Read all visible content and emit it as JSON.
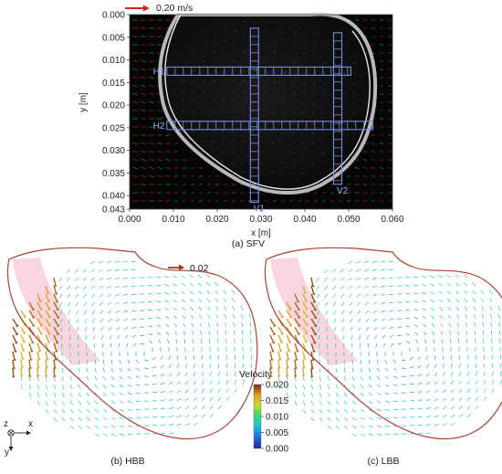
{
  "panel_a": {
    "caption": "(a) SFV",
    "chart_data": {
      "type": "vector_field",
      "xlabel": "x [m]",
      "ylabel": "y [m]",
      "xlim": [
        0.0,
        0.06
      ],
      "ylim": [
        0.0,
        0.043
      ],
      "y_inverted": true,
      "xticks": [
        "0.000",
        "0.010",
        "0.020",
        "0.030",
        "0.040",
        "0.050",
        "0.060"
      ],
      "yticks": [
        "0.000",
        "0.005",
        "0.010",
        "0.015",
        "0.020",
        "0.025",
        "0.030",
        "0.035",
        "0.040",
        "0.043"
      ],
      "ytick_values": [
        0.0,
        0.005,
        0.01,
        0.015,
        0.02,
        0.025,
        0.03,
        0.035,
        0.04,
        0.043
      ],
      "scale_arrow_label": "0.20 m/s",
      "lines": [
        {
          "label": "H1",
          "orientation": "horizontal",
          "position": 0.0125,
          "from": 0.0085,
          "to": 0.0505
        },
        {
          "label": "H2",
          "orientation": "horizontal",
          "position": 0.0245,
          "from": 0.0085,
          "to": 0.0555
        },
        {
          "label": "V1",
          "orientation": "vertical",
          "position": 0.0285,
          "from": 0.003,
          "to": 0.0415
        },
        {
          "label": "V2",
          "orientation": "vertical",
          "position": 0.0475,
          "from": 0.004,
          "to": 0.0375
        }
      ]
    }
  },
  "panel_b": {
    "caption": "(b) HBB",
    "scale_arrow_label": "0.02"
  },
  "panel_c": {
    "caption": "(c) LBB"
  },
  "colorbar": {
    "title": "Velocity",
    "ticks": [
      "0.020",
      "0.015",
      "0.010",
      "0.005",
      "0.000"
    ],
    "values": [
      0.02,
      0.015,
      0.01,
      0.005,
      0.0
    ]
  },
  "axes_triad": {
    "z": "z",
    "x": "x",
    "y": "y"
  }
}
